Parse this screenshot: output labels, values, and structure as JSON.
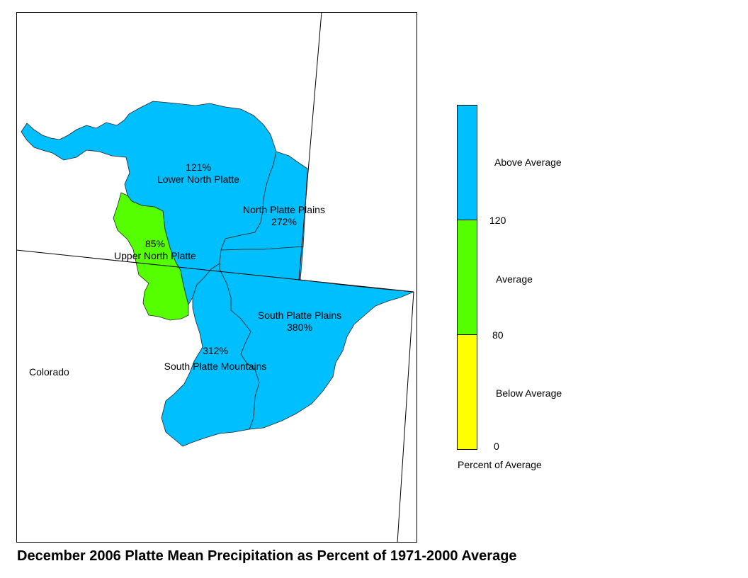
{
  "map": {
    "state_label": "Colorado",
    "basins": [
      {
        "name": "Lower North Platte",
        "percent": "121%",
        "category": "above"
      },
      {
        "name": "North Platte Plains",
        "percent": "272%",
        "category": "above"
      },
      {
        "name": "Upper North Platte",
        "percent": "85%",
        "category": "average"
      },
      {
        "name": "South Platte Plains",
        "percent": "380%",
        "category": "above"
      },
      {
        "name": "South Platte Mountains",
        "percent": "312%",
        "category": "above"
      }
    ]
  },
  "legend": {
    "classes": [
      {
        "label": "Above Average",
        "color": "#00bfff",
        "min": 120
      },
      {
        "label": "Average",
        "color": "#55ff00",
        "min": 80,
        "max": 120
      },
      {
        "label": "Below Average",
        "color": "#ffff00",
        "min": 0,
        "max": 80
      }
    ],
    "breaks": [
      "120",
      "80",
      "0"
    ],
    "title": "Percent of Average"
  },
  "caption": "December 2006 Platte Mean Precipitation as Percent of 1971-2000 Average"
}
